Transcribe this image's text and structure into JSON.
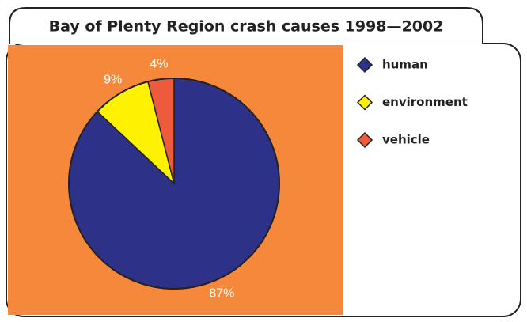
{
  "chart_data": {
    "type": "pie",
    "title": "Bay of Plenty Region crash causes 1998—2002",
    "categories": [
      "human",
      "environment",
      "vehicle"
    ],
    "values": [
      87,
      9,
      4
    ],
    "value_labels": [
      "87%",
      "9%",
      "4%"
    ],
    "colors": [
      "#2e3188",
      "#fff200",
      "#ee5a3c"
    ],
    "start_angle": 0,
    "direction": "clockwise",
    "background": "#f5883a"
  }
}
